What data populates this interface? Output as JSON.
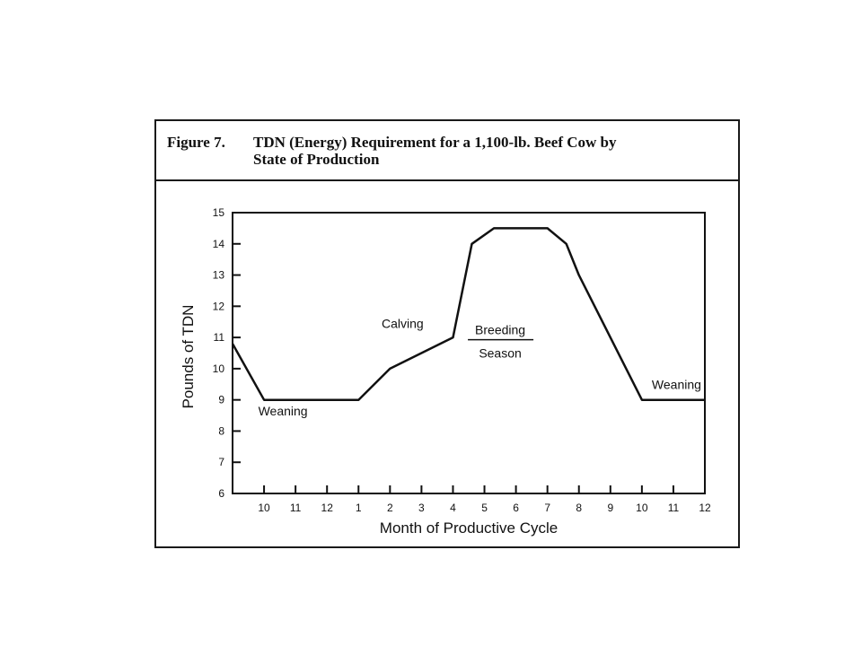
{
  "figure": {
    "number": "Figure 7.",
    "title_line1": "TDN (Energy) Requirement for a 1,100-lb. Beef Cow by",
    "title_line2": "State of Production"
  },
  "chart_data": {
    "type": "line",
    "xlabel": "Month of Productive Cycle",
    "ylabel": "Pounds of TDN",
    "ylim": [
      6,
      15
    ],
    "yticks": [
      6,
      7,
      8,
      9,
      10,
      11,
      12,
      13,
      14,
      15
    ],
    "xlim": [
      0,
      15
    ],
    "xtick_positions": [
      1,
      2,
      3,
      4,
      5,
      6,
      7,
      8,
      9,
      10,
      11,
      12,
      13,
      14,
      15
    ],
    "xtick_labels": [
      "10",
      "11",
      "12",
      "1",
      "2",
      "3",
      "4",
      "5",
      "6",
      "7",
      "8",
      "9",
      "10",
      "11",
      "12"
    ],
    "grid": false,
    "series": [
      {
        "x": [
          0,
          1,
          4,
          5,
          7,
          7.6,
          8.3,
          10,
          10.6,
          11,
          13,
          15
        ],
        "y": [
          10.8,
          9,
          9,
          10,
          11,
          14,
          14.5,
          14.5,
          14,
          13,
          9,
          9
        ]
      }
    ],
    "annotations": {
      "weaning_1": {
        "text": "Weaning",
        "x": 1.6,
        "y": 8.5
      },
      "calving": {
        "text": "Calving",
        "x": 5.4,
        "y": 11.3
      },
      "breeding": {
        "text": "Breeding",
        "x": 8.5,
        "y": 11.1
      },
      "season": {
        "text": "Season",
        "x": 8.5,
        "y": 10.35
      },
      "weaning_2": {
        "text": "Weaning",
        "x": 14.1,
        "y": 9.35
      }
    }
  }
}
